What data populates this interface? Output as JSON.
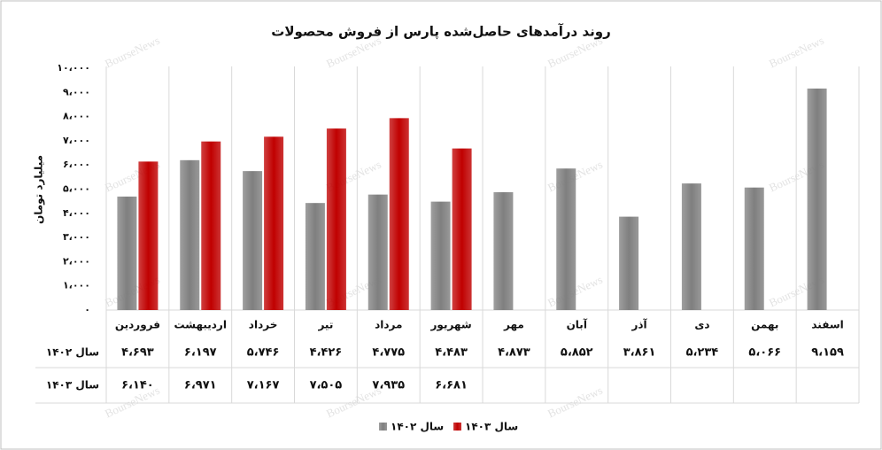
{
  "chart_data": {
    "type": "bar",
    "title": "روند درآمدهای حاصل‌شده پارس از فروش محصولات",
    "y_label": "میلیارد تومان",
    "watermark": "BourseNews",
    "categories": [
      "فروردین",
      "اردیبهشت",
      "خرداد",
      "تیر",
      "مرداد",
      "شهریور",
      "مهر",
      "آبان",
      "آذر",
      "دی",
      "بهمن",
      "اسفند"
    ],
    "series": [
      {
        "name": "سال ۱۴۰۲",
        "color": "#7f7f7f",
        "values": [
          4693,
          6197,
          5746,
          4426,
          4775,
          4483,
          4873,
          5852,
          3861,
          5234,
          5066,
          9159
        ],
        "value_labels": [
          "۴،۶۹۳",
          "۶،۱۹۷",
          "۵،۷۴۶",
          "۴،۴۲۶",
          "۴،۷۷۵",
          "۴،۴۸۳",
          "۴،۸۷۳",
          "۵،۸۵۲",
          "۳،۸۶۱",
          "۵،۲۳۴",
          "۵،۰۶۶",
          "۹،۱۵۹"
        ]
      },
      {
        "name": "سال ۱۴۰۳",
        "color": "#c00000",
        "values": [
          6140,
          6971,
          7167,
          7505,
          7935,
          6681,
          null,
          null,
          null,
          null,
          null,
          null
        ],
        "value_labels": [
          "۶،۱۴۰",
          "۶،۹۷۱",
          "۷،۱۶۷",
          "۷،۵۰۵",
          "۷،۹۳۵",
          "۶،۶۸۱",
          null,
          null,
          null,
          null,
          null,
          null
        ]
      }
    ],
    "ylim": [
      0,
      10000
    ],
    "yticks": [
      {
        "value": 0,
        "label": "۰"
      },
      {
        "value": 1000,
        "label": "۱،۰۰۰"
      },
      {
        "value": 2000,
        "label": "۲،۰۰۰"
      },
      {
        "value": 3000,
        "label": "۳،۰۰۰"
      },
      {
        "value": 4000,
        "label": "۴،۰۰۰"
      },
      {
        "value": 5000,
        "label": "۵،۰۰۰"
      },
      {
        "value": 6000,
        "label": "۶،۰۰۰"
      },
      {
        "value": 7000,
        "label": "۷،۰۰۰"
      },
      {
        "value": 8000,
        "label": "۸،۰۰۰"
      },
      {
        "value": 9000,
        "label": "۹،۰۰۰"
      },
      {
        "value": 10000,
        "label": "۱۰،۰۰۰"
      }
    ],
    "grid": false
  }
}
